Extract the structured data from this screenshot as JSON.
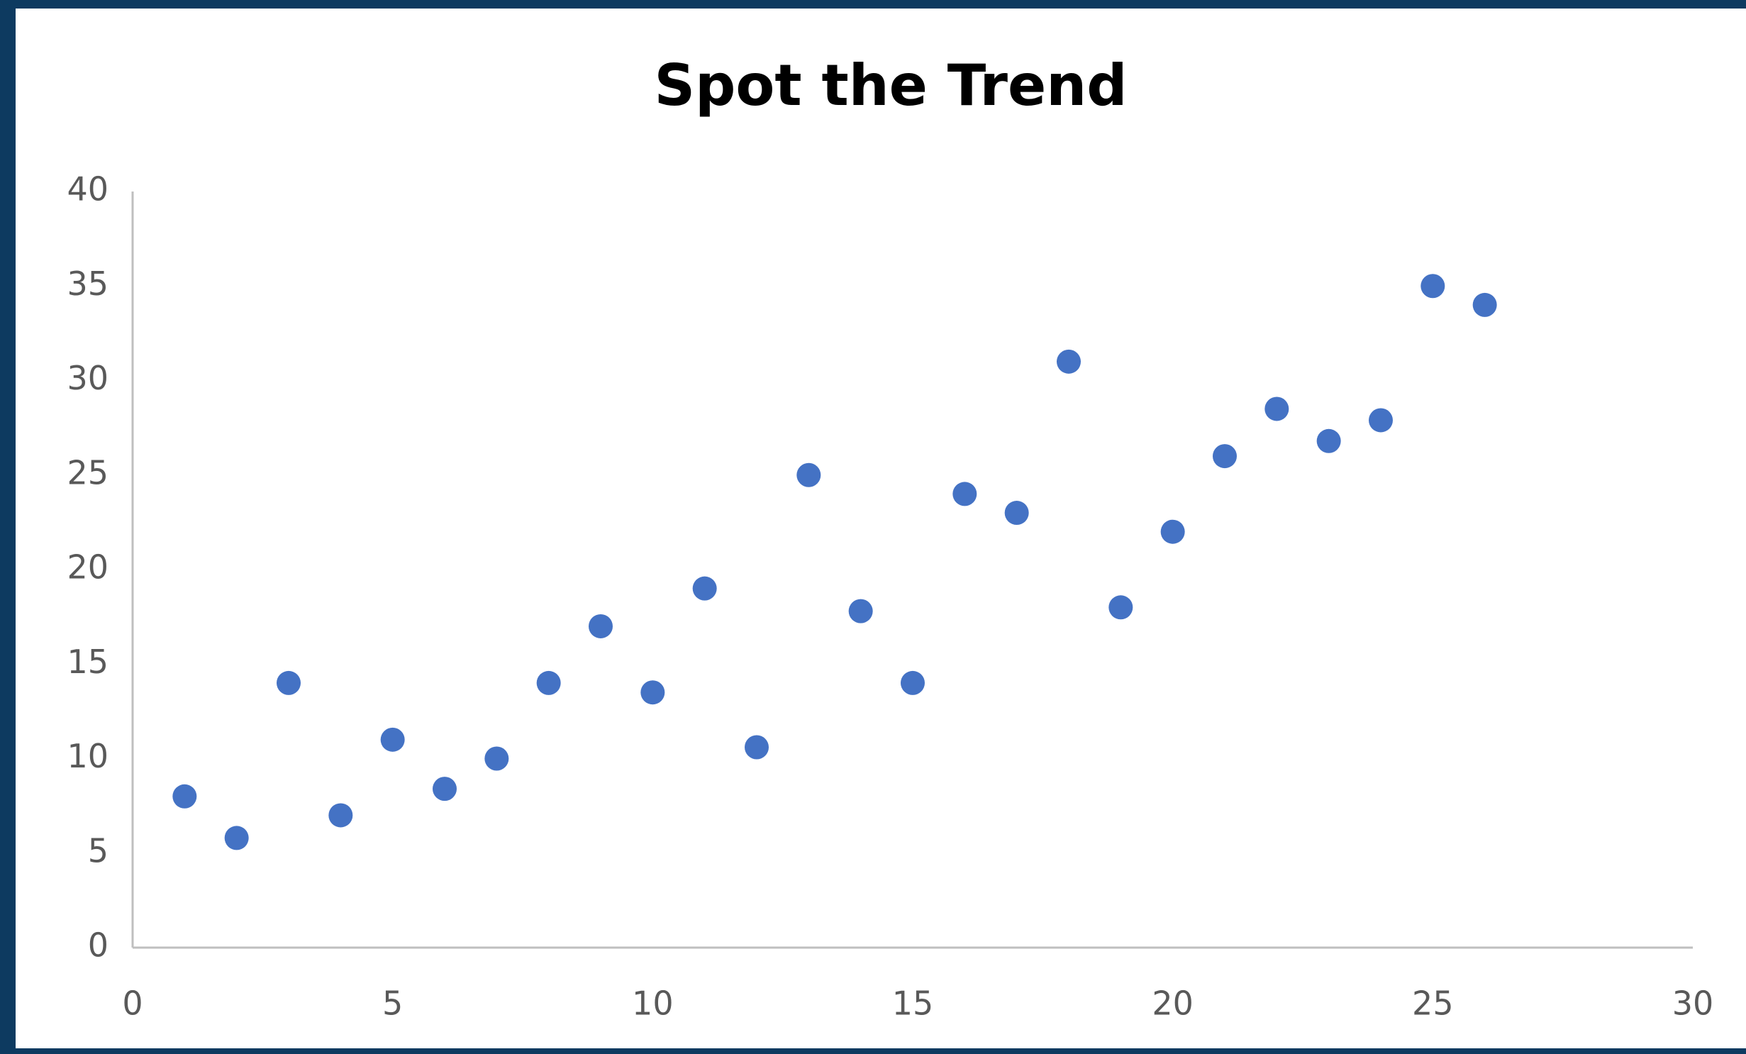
{
  "chart_data": {
    "type": "scatter",
    "title": "Spot the Trend",
    "x": [
      1,
      2,
      3,
      4,
      5,
      6,
      7,
      8,
      9,
      10,
      11,
      12,
      13,
      14,
      15,
      16,
      17,
      18,
      19,
      20,
      21,
      22,
      23,
      24,
      25,
      26
    ],
    "series": [
      {
        "color": "#4472c4",
        "values": [
          8,
          5.8,
          14,
          7,
          11,
          8.4,
          10,
          14,
          17,
          13.5,
          19,
          10.6,
          25,
          17.8,
          14,
          24,
          23,
          31,
          18,
          22,
          26,
          28.5,
          26.8,
          27.9,
          35,
          34
        ]
      }
    ],
    "xlim": [
      0,
      30
    ],
    "xticks": [
      0,
      5,
      10,
      15,
      20,
      25,
      30
    ],
    "ylim": [
      0,
      40
    ],
    "yticks": [
      0,
      5,
      10,
      15,
      20,
      25,
      30,
      35,
      40
    ],
    "grid": false
  }
}
